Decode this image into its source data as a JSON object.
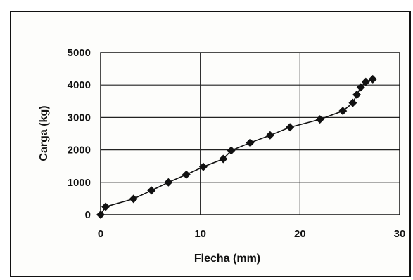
{
  "chart_data": {
    "type": "line",
    "xlabel": "Flecha (mm)",
    "ylabel": "Carga (kg)",
    "xlim": [
      0,
      30
    ],
    "ylim": [
      0,
      5000
    ],
    "x_ticks": [
      0,
      10,
      20,
      30
    ],
    "y_ticks": [
      0,
      1000,
      2000,
      3000,
      4000,
      5000
    ],
    "grid": true,
    "legend": "none",
    "series": [
      {
        "color": "#111111",
        "marker": "diamond",
        "x": [
          0,
          0.5,
          3.3,
          5.1,
          6.8,
          8.6,
          10.3,
          12.3,
          13.1,
          15.0,
          17.0,
          19.0,
          22.0,
          24.3,
          25.3,
          25.7,
          26.1,
          26.6,
          27.3
        ],
        "y": [
          0,
          250,
          490,
          750,
          1000,
          1240,
          1480,
          1720,
          1980,
          2220,
          2450,
          2700,
          2940,
          3200,
          3450,
          3700,
          3930,
          4100,
          4180
        ]
      }
    ]
  }
}
